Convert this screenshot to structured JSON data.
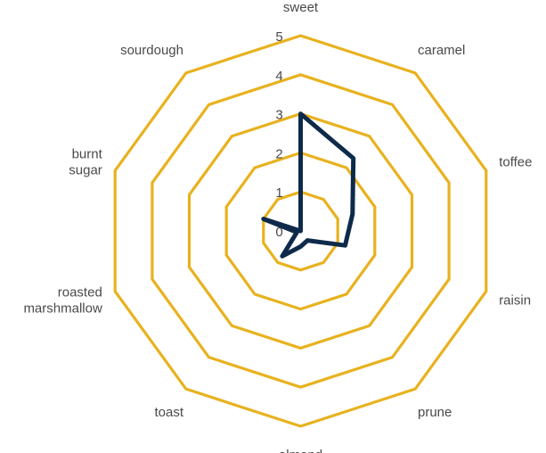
{
  "chart_data": {
    "type": "radar",
    "categories": [
      "sweet",
      "caramel",
      "toffee",
      "raisin",
      "prune",
      "almond",
      "toast",
      "roasted marshmallow",
      "burnt sugar",
      "sourdough"
    ],
    "series": [
      {
        "values": [
          3,
          2.3,
          1.4,
          1.2,
          0.3,
          0.4,
          0.8,
          0.1,
          1.0,
          0
        ]
      }
    ],
    "rlim": [
      0,
      5
    ],
    "ticks": [
      "0",
      "1",
      "2",
      "3",
      "4",
      "5"
    ],
    "grid": true,
    "colors": {
      "grid": "#E8B21F",
      "series": "#0E2A4A",
      "text": "#4A4A4A"
    }
  }
}
